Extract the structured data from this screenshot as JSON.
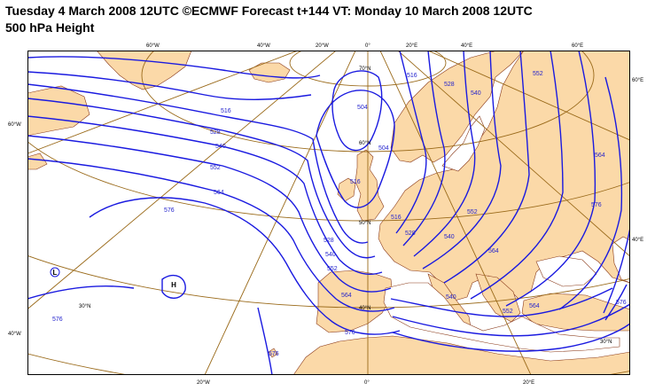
{
  "title": {
    "line1": "Tuesday 4 March 2008 12UTC ©ECMWF Forecast t+144 VT: Monday 10 March 2008 12UTC",
    "line2": "500 hPa Height"
  },
  "colors": {
    "land": "#fbd9a8",
    "coast": "#8a3a1a",
    "graticule": "#9a6a1a",
    "contour": "#1a1ae0",
    "contour_label": "#1f1fcc"
  },
  "graticule_labels": {
    "top": [
      "60°W",
      "40°W",
      "20°W",
      "0°",
      "20°E",
      "40°E",
      "60°E"
    ],
    "bottom": [
      "20°W",
      "0°",
      "20°E"
    ],
    "left": [
      "60°W",
      "40°W"
    ],
    "right": [
      "60°E",
      "40°E"
    ],
    "inner": [
      "70°N",
      "60°N",
      "50°N",
      "40°N",
      "30°N",
      "30°N"
    ]
  },
  "contour_labels": [
    "516",
    "528",
    "540",
    "552",
    "564",
    "576",
    "576",
    "576",
    "504",
    "516",
    "528",
    "540",
    "552",
    "564",
    "576",
    "540",
    "552",
    "564",
    "576",
    "516",
    "504",
    "528",
    "540",
    "552",
    "564",
    "576",
    "564",
    "552",
    "540",
    "528",
    "516"
  ],
  "pressure_markers": {
    "low": "L",
    "high": "H"
  }
}
